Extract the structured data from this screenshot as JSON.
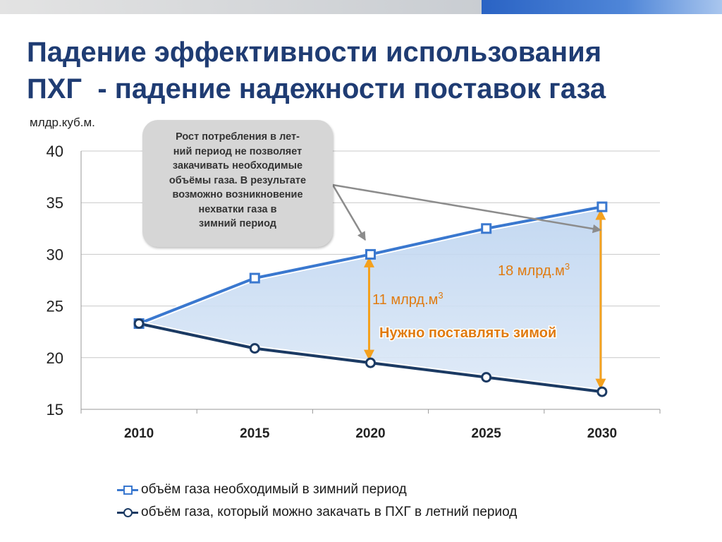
{
  "colors": {
    "title": "#1f3c73",
    "winter_series": "#3a78cf",
    "summer_series": "#1b3a63",
    "fill_area": "#cfe0f4",
    "gap_arrow": "#f4a11e",
    "gap_label": "#e07b10",
    "callout_bg": "#d6d6d6",
    "pointer_arrow": "#8c8c8c"
  },
  "header": {
    "title_line1": "Падение эффективности использования",
    "title_line2": "ПХГ  - падение надежности поставок газа"
  },
  "callout": {
    "lines": [
      "Рост потребления в лет-",
      "ний период не позволяет",
      "закачивать необходимые",
      "объёмы газа. В результате",
      "возможно возникновение",
      "нехватки газа в",
      "зимний период"
    ]
  },
  "annotations": {
    "gap_2020": "11 млрд.м",
    "gap_2030": "18 млрд.м",
    "superscript": "3",
    "winter_supply_note": "Нужно поставлять зимой"
  },
  "chart_data": {
    "type": "line",
    "title": "",
    "ylabel": "млдр.куб.м.",
    "xlabel": "",
    "categories": [
      "2010",
      "2015",
      "2020",
      "2025",
      "2030"
    ],
    "ylim": [
      15,
      40
    ],
    "yticks": [
      "15",
      "20",
      "25",
      "30",
      "35",
      "40"
    ],
    "grid": true,
    "legend_position": "bottom-left",
    "series": [
      {
        "name": "объём газа необходимый в зимний период",
        "values": [
          23.3,
          27.7,
          30.0,
          32.5,
          34.6
        ],
        "marker": "square"
      },
      {
        "name": "объём газа, который можно закачать в ПХГ в летний период",
        "values": [
          23.3,
          20.9,
          19.5,
          18.1,
          16.7
        ],
        "marker": "circle"
      }
    ]
  }
}
